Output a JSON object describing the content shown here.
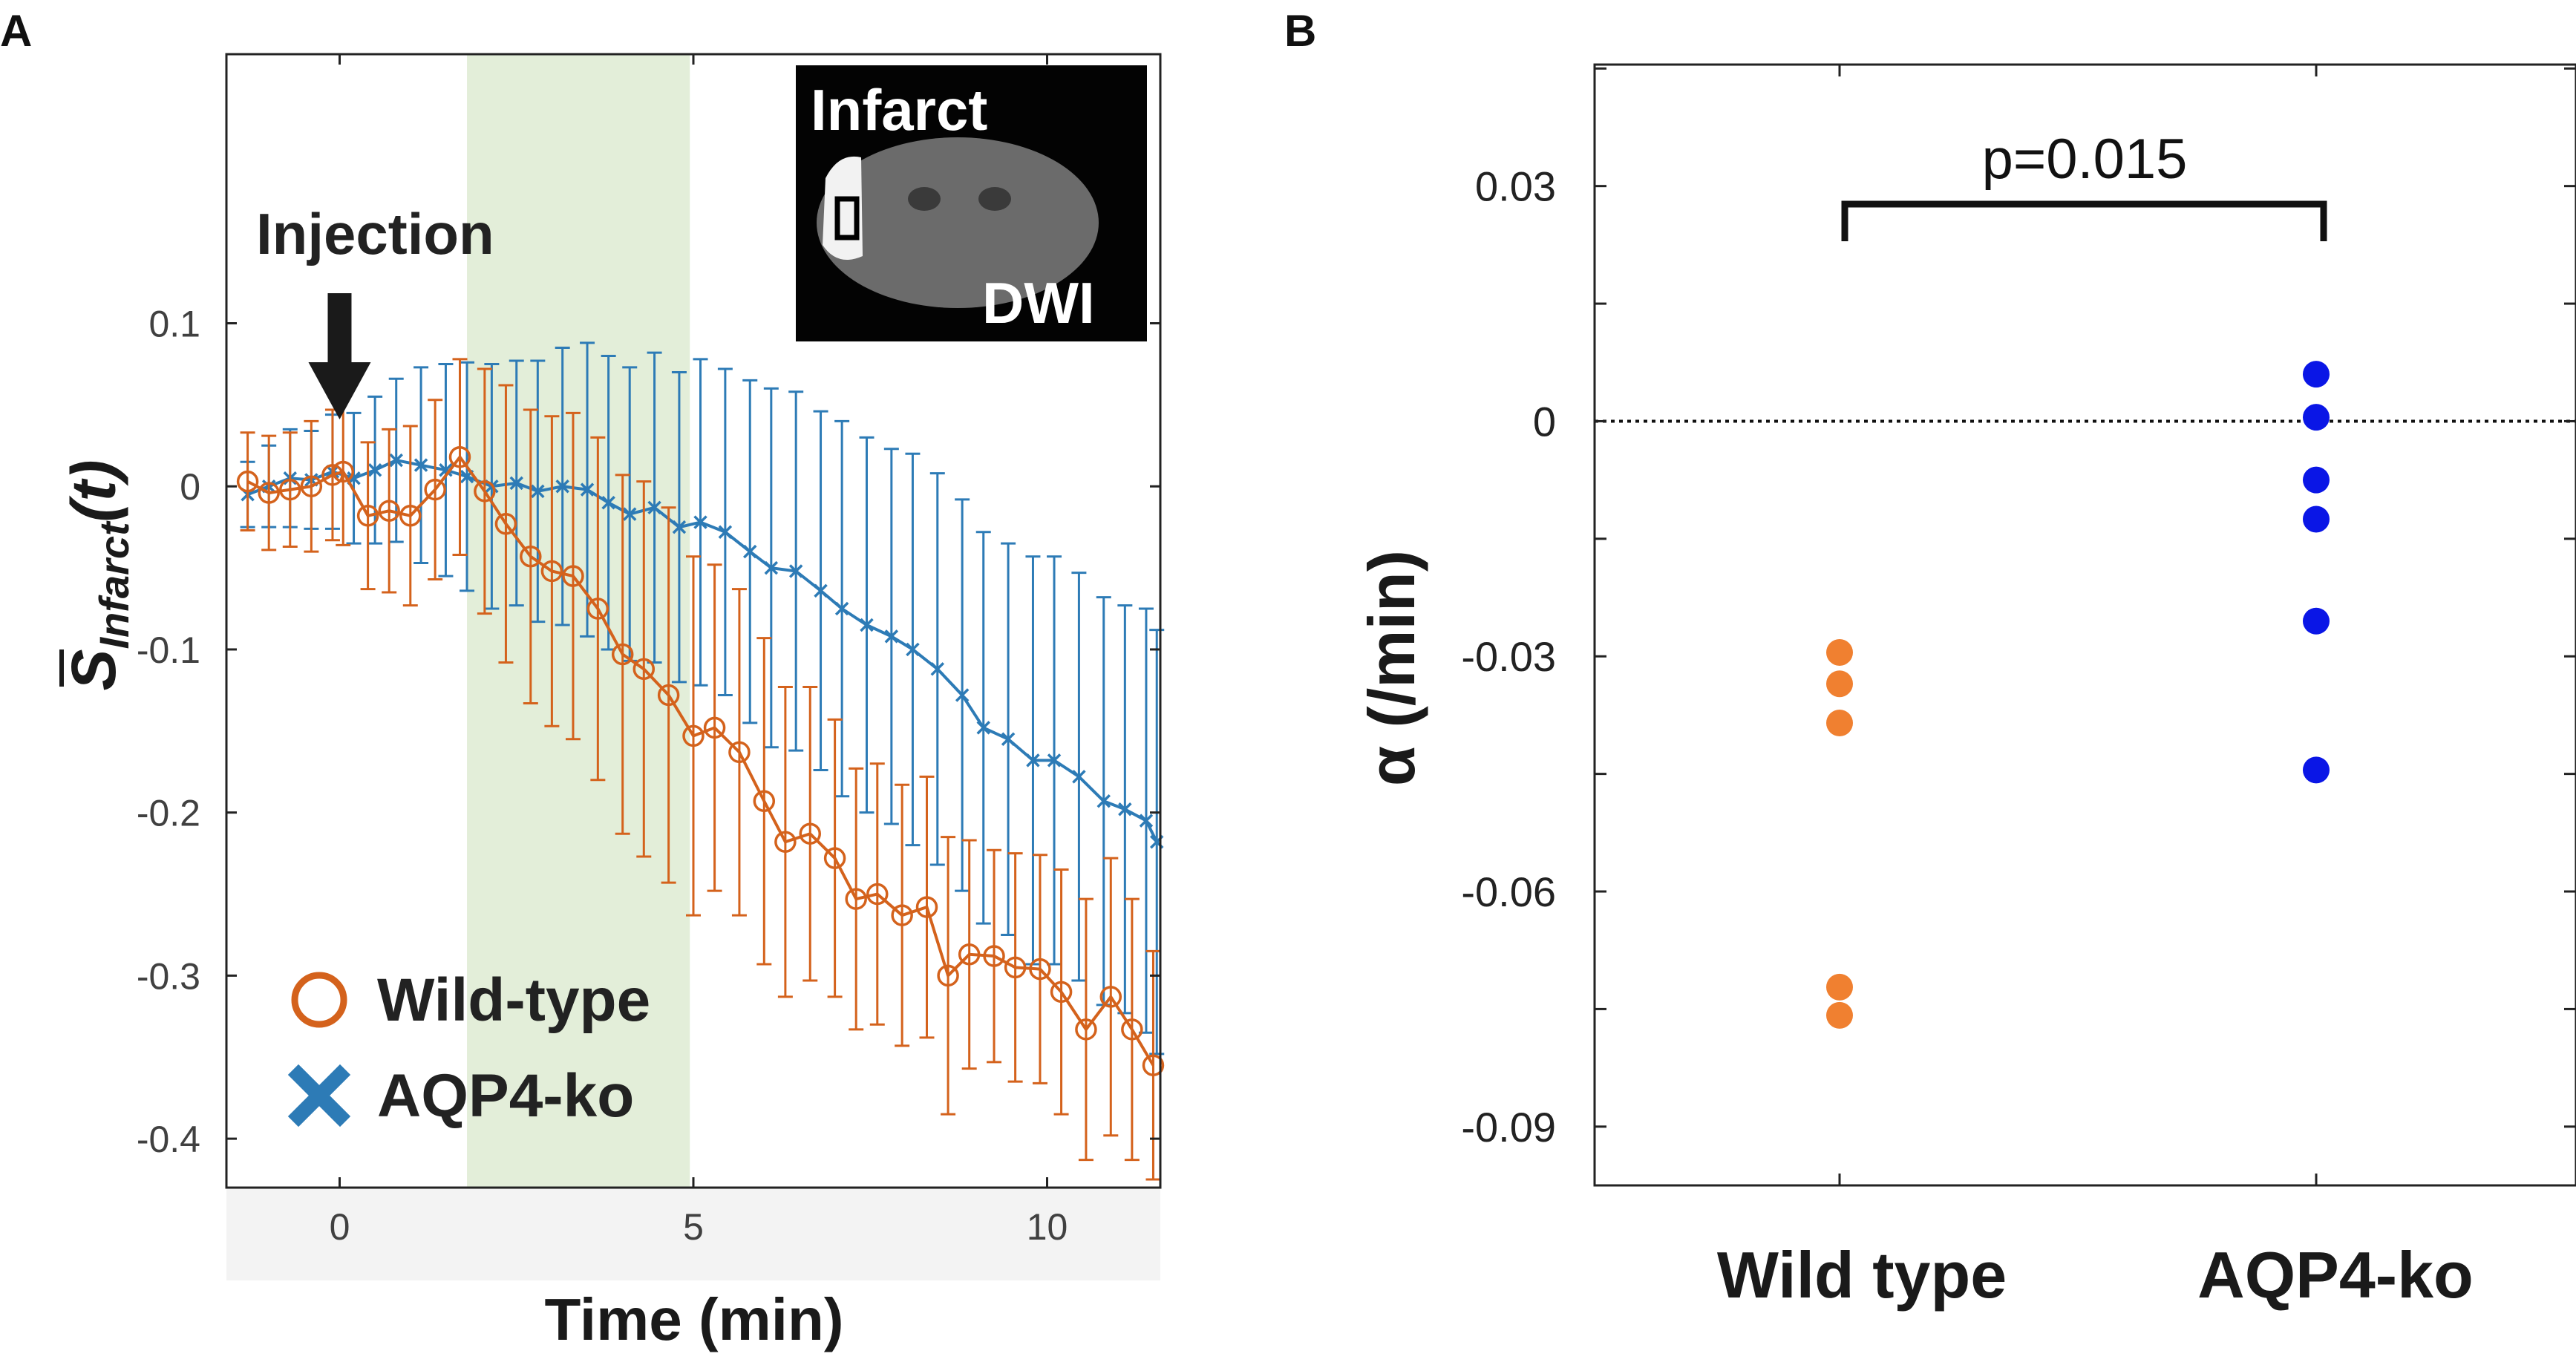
{
  "panels": {
    "a_label": "A",
    "b_label": "B"
  },
  "chart_data": [
    {
      "type": "line",
      "panel": "A",
      "xlabel": "Time (min)",
      "ylabel": "S",
      "ylabel_sub": "Infarct",
      "ylabel_suffix": "(t)",
      "xlim": [
        -1.6,
        11.6
      ],
      "ylim": [
        -0.43,
        0.265
      ],
      "xticks": [
        0,
        5,
        10
      ],
      "xtick_labels": [
        "0",
        "5",
        "10"
      ],
      "yticks": [
        0.1,
        0,
        -0.1,
        -0.2,
        -0.3,
        -0.4
      ],
      "ytick_labels": [
        "0.1",
        "0",
        "-0.1",
        "-0.2",
        "-0.3",
        "-0.4"
      ],
      "shaded_interval": [
        1.8,
        4.95
      ],
      "injection_label": "Injection",
      "injection_x": 0,
      "inset_labels": {
        "top": "Infarct",
        "bottom": "DWI"
      },
      "legend": [
        "Wild-type",
        "AQP4-ko"
      ],
      "series": [
        {
          "name": "Wild-type",
          "color": "#d4621c",
          "marker": "circle",
          "x": [
            -1.3,
            -1.0,
            -0.7,
            -0.4,
            -0.1,
            0.05,
            0.4,
            0.7,
            1.0,
            1.35,
            1.7,
            2.05,
            2.35,
            2.7,
            3.0,
            3.3,
            3.65,
            4.0,
            4.3,
            4.65,
            5.0,
            5.3,
            5.65,
            6.0,
            6.3,
            6.65,
            7.0,
            7.3,
            7.6,
            7.95,
            8.3,
            8.6,
            8.9,
            9.25,
            9.55,
            9.9,
            10.2,
            10.55,
            10.9,
            11.2,
            11.5
          ],
          "y": [
            0.003,
            -0.004,
            -0.002,
            0.0,
            0.007,
            0.009,
            -0.018,
            -0.015,
            -0.018,
            -0.002,
            0.018,
            -0.003,
            -0.023,
            -0.043,
            -0.052,
            -0.055,
            -0.075,
            -0.103,
            -0.112,
            -0.128,
            -0.153,
            -0.148,
            -0.163,
            -0.193,
            -0.218,
            -0.213,
            -0.228,
            -0.253,
            -0.25,
            -0.263,
            -0.258,
            -0.3,
            -0.287,
            -0.288,
            -0.295,
            -0.296,
            -0.31,
            -0.333,
            -0.313,
            -0.333,
            -0.355
          ],
          "err": [
            0.03,
            0.035,
            0.035,
            0.04,
            0.04,
            0.045,
            0.045,
            0.05,
            0.055,
            0.055,
            0.06,
            0.075,
            0.085,
            0.09,
            0.095,
            0.1,
            0.105,
            0.11,
            0.115,
            0.115,
            0.11,
            0.1,
            0.1,
            0.1,
            0.095,
            0.09,
            0.085,
            0.08,
            0.08,
            0.08,
            0.08,
            0.085,
            0.07,
            0.065,
            0.07,
            0.07,
            0.075,
            0.08,
            0.085,
            0.08,
            0.07
          ]
        },
        {
          "name": "AQP4-ko",
          "color": "#2d7bb6",
          "marker": "x",
          "x": [
            -1.3,
            -1.0,
            -0.7,
            -0.4,
            -0.1,
            0.2,
            0.5,
            0.8,
            1.15,
            1.5,
            1.8,
            2.15,
            2.5,
            2.8,
            3.15,
            3.5,
            3.8,
            4.1,
            4.45,
            4.8,
            5.1,
            5.45,
            5.8,
            6.1,
            6.45,
            6.8,
            7.1,
            7.45,
            7.8,
            8.1,
            8.45,
            8.8,
            9.1,
            9.45,
            9.8,
            10.1,
            10.45,
            10.8,
            11.1,
            11.4,
            11.55
          ],
          "y": [
            -0.005,
            0.0,
            0.005,
            0.004,
            0.009,
            0.005,
            0.01,
            0.016,
            0.013,
            0.01,
            0.006,
            0.0,
            0.002,
            -0.003,
            0.0,
            -0.002,
            -0.01,
            -0.017,
            -0.013,
            -0.025,
            -0.022,
            -0.028,
            -0.04,
            -0.05,
            -0.052,
            -0.064,
            -0.075,
            -0.085,
            -0.092,
            -0.1,
            -0.112,
            -0.128,
            -0.148,
            -0.155,
            -0.168,
            -0.168,
            -0.178,
            -0.193,
            -0.198,
            -0.205,
            -0.218
          ],
          "err": [
            0.02,
            0.025,
            0.03,
            0.03,
            0.035,
            0.04,
            0.045,
            0.05,
            0.06,
            0.065,
            0.07,
            0.075,
            0.075,
            0.08,
            0.085,
            0.09,
            0.09,
            0.09,
            0.095,
            0.095,
            0.1,
            0.1,
            0.105,
            0.11,
            0.11,
            0.11,
            0.115,
            0.115,
            0.115,
            0.12,
            0.12,
            0.12,
            0.12,
            0.12,
            0.125,
            0.125,
            0.125,
            0.125,
            0.125,
            0.13,
            0.13
          ]
        }
      ]
    },
    {
      "type": "scatter",
      "panel": "B",
      "ylabel": "α (/min)",
      "ylim": [
        -0.0975,
        0.0455
      ],
      "yticks": [
        0.03,
        0,
        -0.03,
        -0.06,
        -0.09
      ],
      "ytick_labels": [
        "0.03",
        "0",
        "-0.03",
        "-0.06",
        "-0.09"
      ],
      "categories": [
        "Wild type",
        "AQP4-ko"
      ],
      "reference_line": 0,
      "significance": {
        "label": "p=0.015",
        "between": [
          "Wild type",
          "AQP4-ko"
        ]
      },
      "series": [
        {
          "name": "Wild type",
          "color": "#f08030",
          "values": [
            -0.0295,
            -0.0335,
            -0.0385,
            -0.0722,
            -0.0758
          ]
        },
        {
          "name": "AQP4-ko",
          "color": "#0a16e6",
          "values": [
            0.006,
            0.0005,
            -0.0075,
            -0.0125,
            -0.0255,
            -0.0445
          ]
        }
      ]
    }
  ]
}
